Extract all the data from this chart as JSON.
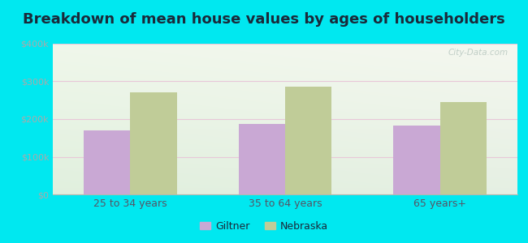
{
  "title": "Breakdown of mean house values by ages of householders",
  "categories": [
    "25 to 34 years",
    "35 to 64 years",
    "65 years+"
  ],
  "giltner_values": [
    170000,
    187000,
    182000
  ],
  "nebraska_values": [
    272000,
    287000,
    245000
  ],
  "ylim": [
    0,
    400000
  ],
  "yticks": [
    0,
    100000,
    200000,
    300000,
    400000
  ],
  "ytick_labels": [
    "$0",
    "$100k",
    "$200k",
    "$300k",
    "$400k"
  ],
  "giltner_color": "#c9a8d4",
  "nebraska_color": "#c0cc98",
  "background_outer": "#00e8f0",
  "title_fontsize": 13,
  "title_color": "#1a2a3a",
  "legend_labels": [
    "Giltner",
    "Nebraska"
  ],
  "bar_width": 0.3,
  "watermark": "City-Data.com",
  "ytick_color": "#aaaaaa",
  "xtick_color": "#555566",
  "grid_color": "#e8c8d8",
  "plot_bg_topleft": "#e8f5e0",
  "plot_bg_topright": "#f0f8f0",
  "plot_bg_bottom": "#d8eed0"
}
